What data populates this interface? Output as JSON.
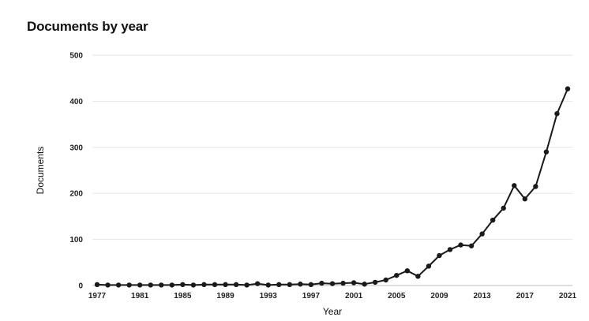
{
  "chart_data": {
    "type": "line",
    "title": "Documents by year",
    "xlabel": "Year",
    "ylabel": "Documents",
    "ylim": [
      0,
      500
    ],
    "xlim": [
      1977,
      2021
    ],
    "y_ticks": [
      0,
      100,
      200,
      300,
      400,
      500
    ],
    "x_ticks": [
      1977,
      1981,
      1985,
      1989,
      1993,
      1997,
      2001,
      2005,
      2009,
      2013,
      2017,
      2021
    ],
    "grid": "horizontal",
    "legend": "none",
    "color": "#1a1a1a",
    "series": [
      {
        "x": [
          1977,
          1978,
          1979,
          1980,
          1981,
          1982,
          1983,
          1984,
          1985,
          1986,
          1987,
          1988,
          1989,
          1990,
          1991,
          1992,
          1993,
          1994,
          1995,
          1996,
          1997,
          1998,
          1999,
          2000,
          2001,
          2002,
          2003,
          2004,
          2005,
          2006,
          2007,
          2008,
          2009,
          2010,
          2011,
          2012,
          2013,
          2014,
          2015,
          2016,
          2017,
          2018,
          2019,
          2020,
          2021
        ],
        "values": [
          2,
          1,
          1,
          1,
          1,
          1,
          1,
          1,
          2,
          1,
          2,
          2,
          2,
          2,
          1,
          4,
          1,
          2,
          2,
          3,
          2,
          5,
          4,
          5,
          6,
          3,
          7,
          12,
          22,
          32,
          20,
          42,
          65,
          78,
          88,
          86,
          112,
          142,
          168,
          217,
          188,
          215,
          290,
          373,
          427
        ]
      }
    ]
  }
}
